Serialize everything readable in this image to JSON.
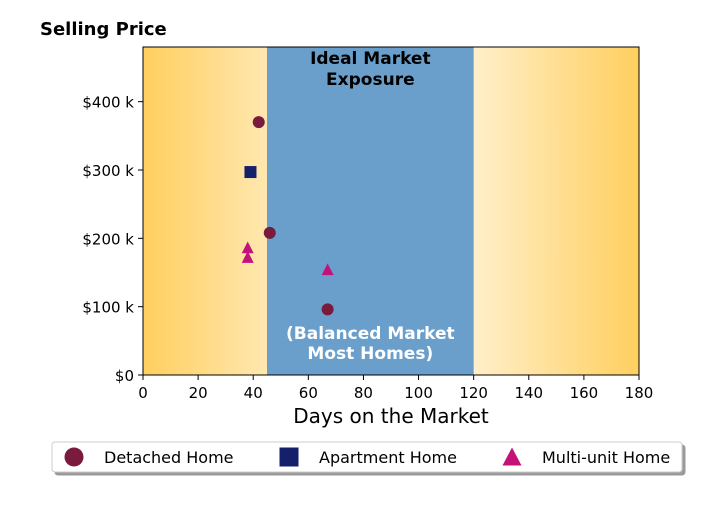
{
  "chart_data": {
    "type": "scatter",
    "title": "Selling Price",
    "xlabel": "Days on the Market",
    "ylabel": "",
    "xlim": [
      0,
      180
    ],
    "ylim": [
      0,
      480
    ],
    "x_ticks": [
      0,
      20,
      40,
      60,
      80,
      100,
      120,
      140,
      160,
      180
    ],
    "y_ticks": [
      0,
      100,
      200,
      300,
      400
    ],
    "x_tick_labels": [
      "0",
      "20",
      "40",
      "60",
      "80",
      "100",
      "120",
      "140",
      "160",
      "180"
    ],
    "y_tick_labels": [
      "$0",
      "$100 k",
      "$200 k",
      "$300 k",
      "$400 k"
    ],
    "grid": false,
    "legend_position": "bottom",
    "ideal_band": {
      "x_range": [
        45,
        120
      ],
      "color": "#6a9fcc",
      "label_top": [
        "Ideal Market",
        "Exposure"
      ],
      "label_bottom": [
        "(Balanced Market",
        "Most Homes)"
      ]
    },
    "background_gradient": {
      "edge_color": "#ffcf5f",
      "center_color": "#ffffff"
    },
    "series": [
      {
        "name": "Detached Home",
        "marker": "circle",
        "color": "#7a1a3c",
        "points": [
          {
            "x": 42,
            "y": 370
          },
          {
            "x": 46,
            "y": 208
          },
          {
            "x": 67,
            "y": 96
          }
        ]
      },
      {
        "name": "Apartment Home",
        "marker": "square",
        "color": "#15206b",
        "points": [
          {
            "x": 39,
            "y": 297
          }
        ]
      },
      {
        "name": "Multi-unit Home",
        "marker": "triangle",
        "color": "#c3137a",
        "points": [
          {
            "x": 38,
            "y": 186
          },
          {
            "x": 38,
            "y": 172
          },
          {
            "x": 67,
            "y": 154
          }
        ]
      }
    ]
  }
}
